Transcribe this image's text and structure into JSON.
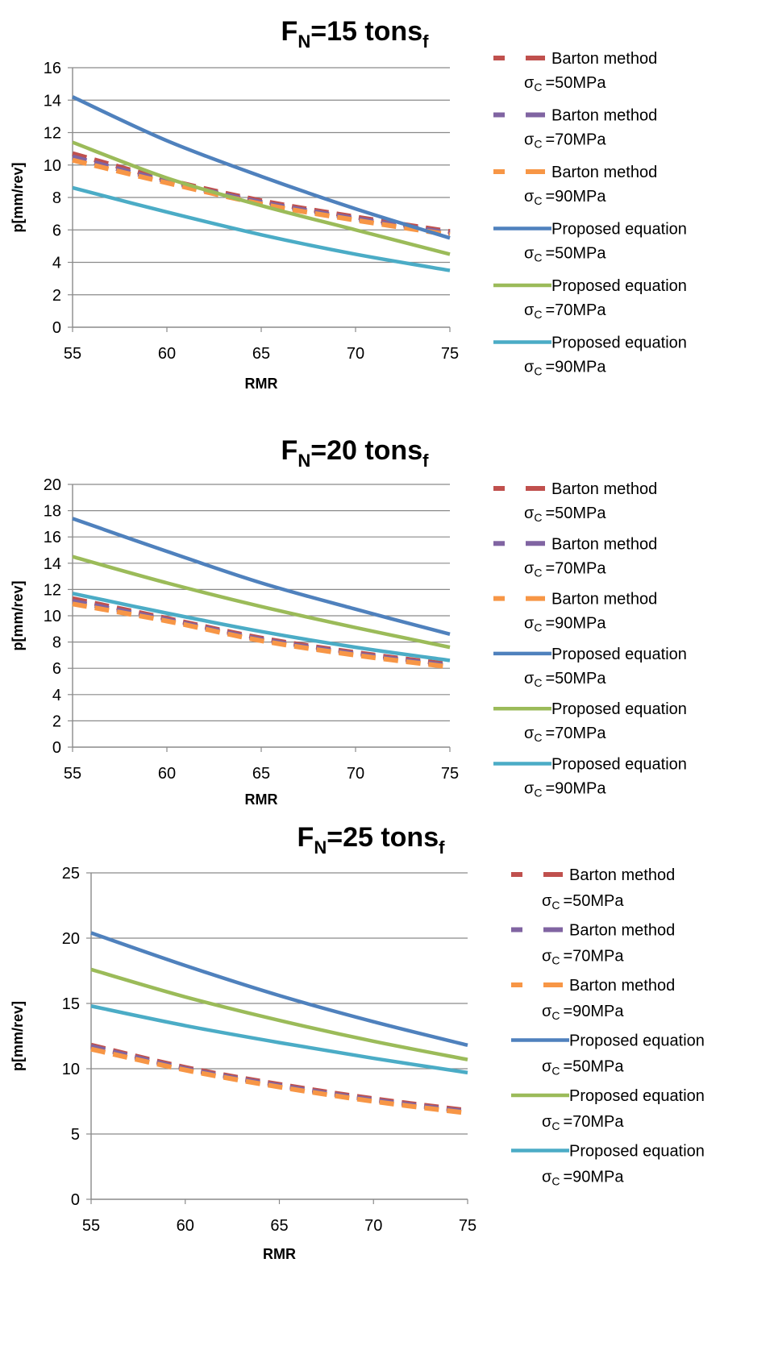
{
  "chart_data": [
    {
      "type": "line",
      "title": {
        "main": "F",
        "sub1": "N",
        "mid": "=15 tons",
        "sub2": "f"
      },
      "xlabel": "RMR",
      "ylabel": "p[mm/rev]",
      "xlim": [
        55,
        75
      ],
      "ylim": [
        0,
        16
      ],
      "xticks": [
        55,
        60,
        65,
        70,
        75
      ],
      "yticks": [
        0,
        2,
        4,
        6,
        8,
        10,
        12,
        14,
        16
      ],
      "grid": true,
      "legend_position": "right",
      "series": [
        {
          "name": "Barton method",
          "sigma": "=50MPa",
          "color": "#C0504D",
          "dashed": true,
          "x": [
            55,
            60,
            65,
            70,
            75
          ],
          "y": [
            10.7,
            9.1,
            7.8,
            6.8,
            5.9
          ]
        },
        {
          "name": "Barton method",
          "sigma": "=70MPa",
          "color": "#8064A2",
          "dashed": true,
          "x": [
            55,
            60,
            65,
            70,
            75
          ],
          "y": [
            10.5,
            9.0,
            7.7,
            6.7,
            5.8
          ]
        },
        {
          "name": "Barton method",
          "sigma": "=90MPa",
          "color": "#F79646",
          "dashed": true,
          "x": [
            55,
            60,
            65,
            70,
            75
          ],
          "y": [
            10.3,
            8.9,
            7.6,
            6.6,
            5.7
          ]
        },
        {
          "name": "Proposed equation",
          "sigma": "=50MPa",
          "color": "#4F81BD",
          "dashed": false,
          "x": [
            55,
            60,
            65,
            70,
            75
          ],
          "y": [
            14.2,
            11.5,
            9.3,
            7.3,
            5.5
          ]
        },
        {
          "name": "Proposed equation",
          "sigma": "=70MPa",
          "color": "#9BBB59",
          "dashed": false,
          "x": [
            55,
            60,
            65,
            70,
            75
          ],
          "y": [
            11.4,
            9.2,
            7.5,
            6.0,
            4.5
          ]
        },
        {
          "name": "Proposed equation",
          "sigma": "=90MPa",
          "color": "#4BACC6",
          "dashed": false,
          "x": [
            55,
            60,
            65,
            70,
            75
          ],
          "y": [
            8.6,
            7.1,
            5.7,
            4.5,
            3.5
          ]
        }
      ]
    },
    {
      "type": "line",
      "title": {
        "main": "F",
        "sub1": "N",
        "mid": "=20 tons",
        "sub2": "f"
      },
      "xlabel": "RMR",
      "ylabel": "p[mm/rev]",
      "xlim": [
        55,
        75
      ],
      "ylim": [
        0,
        20
      ],
      "xticks": [
        55,
        60,
        65,
        70,
        75
      ],
      "yticks": [
        0,
        2,
        4,
        6,
        8,
        10,
        12,
        14,
        16,
        18,
        20
      ],
      "grid": true,
      "legend_position": "right",
      "series": [
        {
          "name": "Barton method",
          "sigma": "=50MPa",
          "color": "#C0504D",
          "dashed": true,
          "x": [
            55,
            60,
            65,
            70,
            75
          ],
          "y": [
            11.3,
            9.8,
            8.3,
            7.2,
            6.3
          ]
        },
        {
          "name": "Barton method",
          "sigma": "=70MPa",
          "color": "#8064A2",
          "dashed": true,
          "x": [
            55,
            60,
            65,
            70,
            75
          ],
          "y": [
            11.1,
            9.7,
            8.2,
            7.1,
            6.2
          ]
        },
        {
          "name": "Barton method",
          "sigma": "=90MPa",
          "color": "#F79646",
          "dashed": true,
          "x": [
            55,
            60,
            65,
            70,
            75
          ],
          "y": [
            10.9,
            9.6,
            8.1,
            7.0,
            6.1
          ]
        },
        {
          "name": "Proposed equation",
          "sigma": "=50MPa",
          "color": "#4F81BD",
          "dashed": false,
          "x": [
            55,
            60,
            65,
            70,
            75
          ],
          "y": [
            17.4,
            14.9,
            12.5,
            10.5,
            8.6
          ]
        },
        {
          "name": "Proposed equation",
          "sigma": "=70MPa",
          "color": "#9BBB59",
          "dashed": false,
          "x": [
            55,
            60,
            65,
            70,
            75
          ],
          "y": [
            14.5,
            12.5,
            10.7,
            9.1,
            7.6
          ]
        },
        {
          "name": "Proposed equation",
          "sigma": "=90MPa",
          "color": "#4BACC6",
          "dashed": false,
          "x": [
            55,
            60,
            65,
            70,
            75
          ],
          "y": [
            11.7,
            10.2,
            8.8,
            7.6,
            6.6
          ]
        }
      ]
    },
    {
      "type": "line",
      "title": {
        "main": "F",
        "sub1": "N",
        "mid": "=25 tons",
        "sub2": "f"
      },
      "xlabel": "RMR",
      "ylabel": "p[mm/rev]",
      "xlim": [
        55,
        75
      ],
      "ylim": [
        0,
        25
      ],
      "xticks": [
        55,
        60,
        65,
        70,
        75
      ],
      "yticks": [
        0,
        5,
        10,
        15,
        20,
        25
      ],
      "grid": true,
      "legend_position": "right",
      "series": [
        {
          "name": "Barton method",
          "sigma": "=50MPa",
          "color": "#C0504D",
          "dashed": true,
          "x": [
            55,
            60,
            65,
            70,
            75
          ],
          "y": [
            11.8,
            10.1,
            8.8,
            7.7,
            6.8
          ]
        },
        {
          "name": "Barton method",
          "sigma": "=70MPa",
          "color": "#8064A2",
          "dashed": true,
          "x": [
            55,
            60,
            65,
            70,
            75
          ],
          "y": [
            11.7,
            10.0,
            8.7,
            7.6,
            6.7
          ]
        },
        {
          "name": "Barton method",
          "sigma": "=90MPa",
          "color": "#F79646",
          "dashed": true,
          "x": [
            55,
            60,
            65,
            70,
            75
          ],
          "y": [
            11.5,
            9.9,
            8.6,
            7.5,
            6.6
          ]
        },
        {
          "name": "Proposed equation",
          "sigma": "=50MPa",
          "color": "#4F81BD",
          "dashed": false,
          "x": [
            55,
            60,
            65,
            70,
            75
          ],
          "y": [
            20.4,
            17.9,
            15.6,
            13.6,
            11.8
          ]
        },
        {
          "name": "Proposed equation",
          "sigma": "=70MPa",
          "color": "#9BBB59",
          "dashed": false,
          "x": [
            55,
            60,
            65,
            70,
            75
          ],
          "y": [
            17.6,
            15.5,
            13.7,
            12.1,
            10.7
          ]
        },
        {
          "name": "Proposed equation",
          "sigma": "=90MPa",
          "color": "#4BACC6",
          "dashed": false,
          "x": [
            55,
            60,
            65,
            70,
            75
          ],
          "y": [
            14.8,
            13.3,
            12.0,
            10.8,
            9.7
          ]
        }
      ]
    }
  ],
  "legend_sigma_symbol": "σ",
  "legend_sigma_sub": "C"
}
